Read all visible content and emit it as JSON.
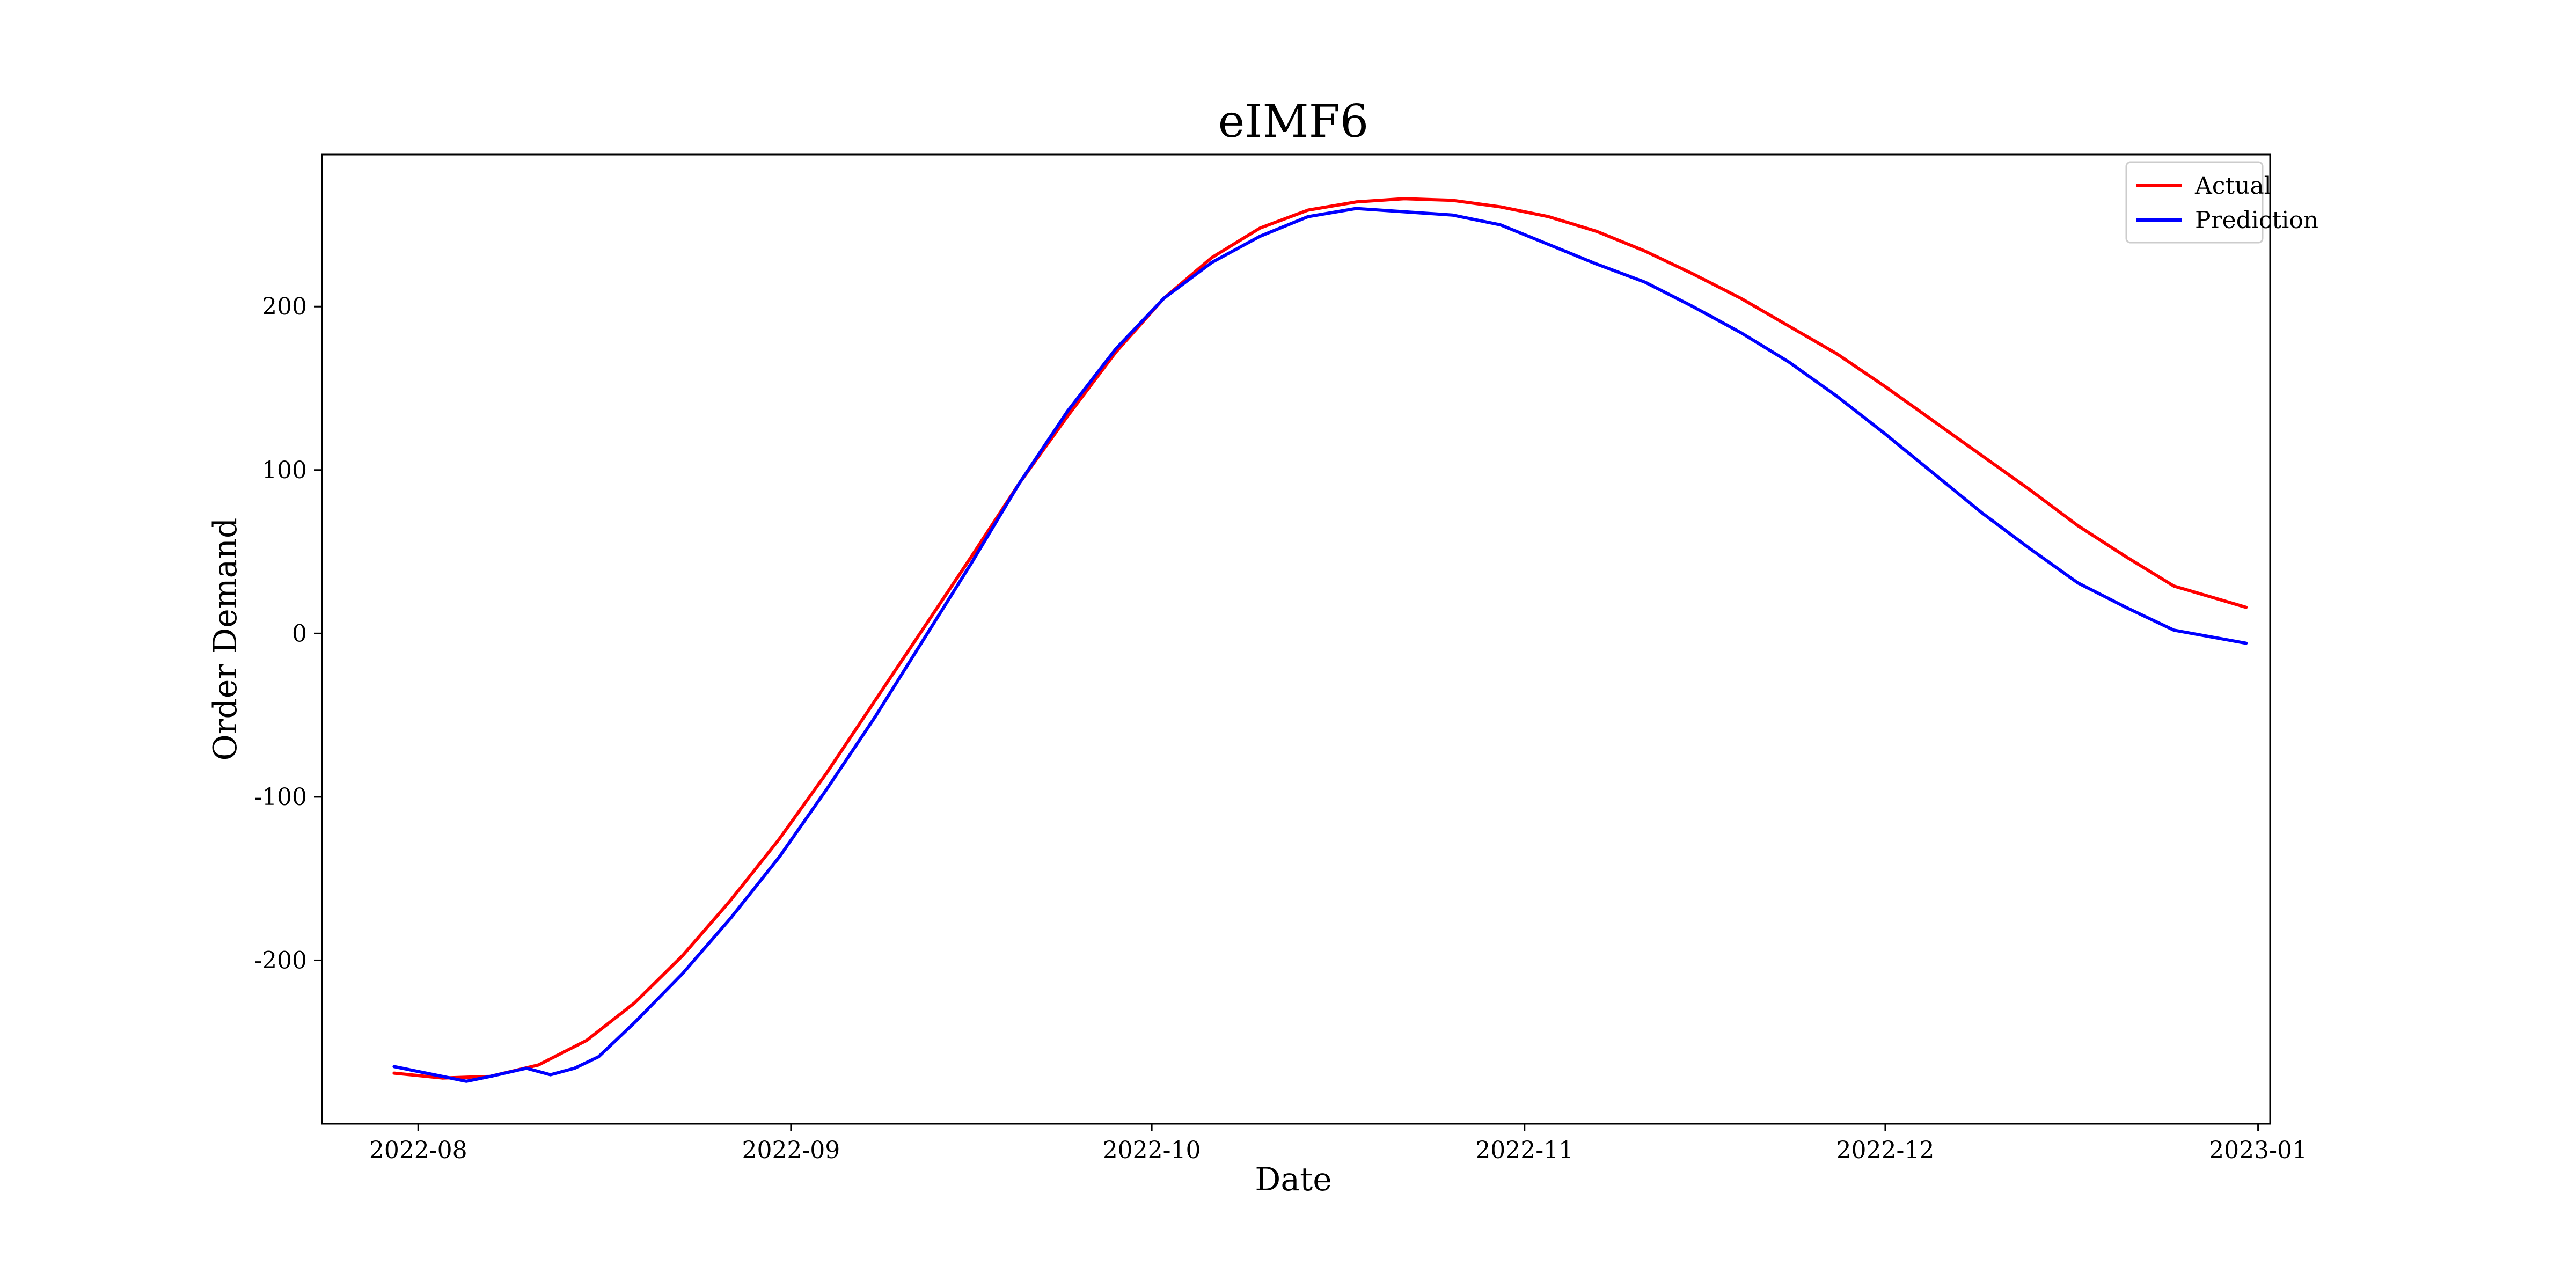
{
  "chart_data": {
    "type": "line",
    "title": "eIMF6",
    "xlabel": "Date",
    "ylabel": "Order Demand",
    "x_ticks": [
      "2022-08",
      "2022-09",
      "2022-10",
      "2022-11",
      "2022-12",
      "2023-01"
    ],
    "y_ticks": [
      -200,
      -100,
      0,
      100,
      200
    ],
    "xlim": [
      "2022-07-24",
      "2023-01-02"
    ],
    "ylim": [
      -300,
      293
    ],
    "grid": false,
    "legend_position": "top-right",
    "series": [
      {
        "name": "Actual",
        "color": "#ff0000",
        "x": [
          "2022-07-30",
          "2022-08-03",
          "2022-08-07",
          "2022-08-11",
          "2022-08-15",
          "2022-08-19",
          "2022-08-23",
          "2022-08-27",
          "2022-08-31",
          "2022-09-04",
          "2022-09-08",
          "2022-09-12",
          "2022-09-16",
          "2022-09-20",
          "2022-09-24",
          "2022-09-28",
          "2022-10-02",
          "2022-10-06",
          "2022-10-10",
          "2022-10-14",
          "2022-10-18",
          "2022-10-22",
          "2022-10-26",
          "2022-10-30",
          "2022-11-03",
          "2022-11-07",
          "2022-11-11",
          "2022-11-15",
          "2022-11-19",
          "2022-11-23",
          "2022-11-27",
          "2022-12-01",
          "2022-12-05",
          "2022-12-09",
          "2022-12-13",
          "2022-12-17",
          "2022-12-21",
          "2022-12-25",
          "2022-12-31"
        ],
        "y": [
          -269,
          -272,
          -271,
          -264,
          -249,
          -226,
          -197,
          -163,
          -126,
          -85,
          -41,
          3,
          47,
          92,
          133,
          172,
          205,
          230,
          248,
          259,
          264,
          266,
          265,
          261,
          255,
          246,
          234,
          220,
          205,
          188,
          171,
          151,
          130,
          109,
          88,
          66,
          47,
          29,
          16
        ]
      },
      {
        "name": "Prediction",
        "color": "#0000ff",
        "x": [
          "2022-07-30",
          "2022-08-03",
          "2022-08-05",
          "2022-08-07",
          "2022-08-10",
          "2022-08-12",
          "2022-08-14",
          "2022-08-16",
          "2022-08-19",
          "2022-08-23",
          "2022-08-27",
          "2022-08-31",
          "2022-09-04",
          "2022-09-08",
          "2022-09-12",
          "2022-09-16",
          "2022-09-20",
          "2022-09-24",
          "2022-09-28",
          "2022-10-02",
          "2022-10-06",
          "2022-10-10",
          "2022-10-14",
          "2022-10-18",
          "2022-10-22",
          "2022-10-26",
          "2022-10-30",
          "2022-11-03",
          "2022-11-07",
          "2022-11-11",
          "2022-11-15",
          "2022-11-19",
          "2022-11-23",
          "2022-11-27",
          "2022-12-01",
          "2022-12-05",
          "2022-12-09",
          "2022-12-13",
          "2022-12-17",
          "2022-12-21",
          "2022-12-25",
          "2022-12-31"
        ],
        "y": [
          -265,
          -271,
          -274,
          -271,
          -266,
          -270,
          -266,
          -259,
          -238,
          -208,
          -174,
          -137,
          -95,
          -51,
          -4,
          43,
          92,
          136,
          174,
          205,
          227,
          243,
          255,
          260,
          258,
          256,
          250,
          238,
          226,
          215,
          200,
          184,
          166,
          145,
          122,
          98,
          74,
          52,
          31,
          16,
          2,
          -6
        ]
      }
    ]
  }
}
